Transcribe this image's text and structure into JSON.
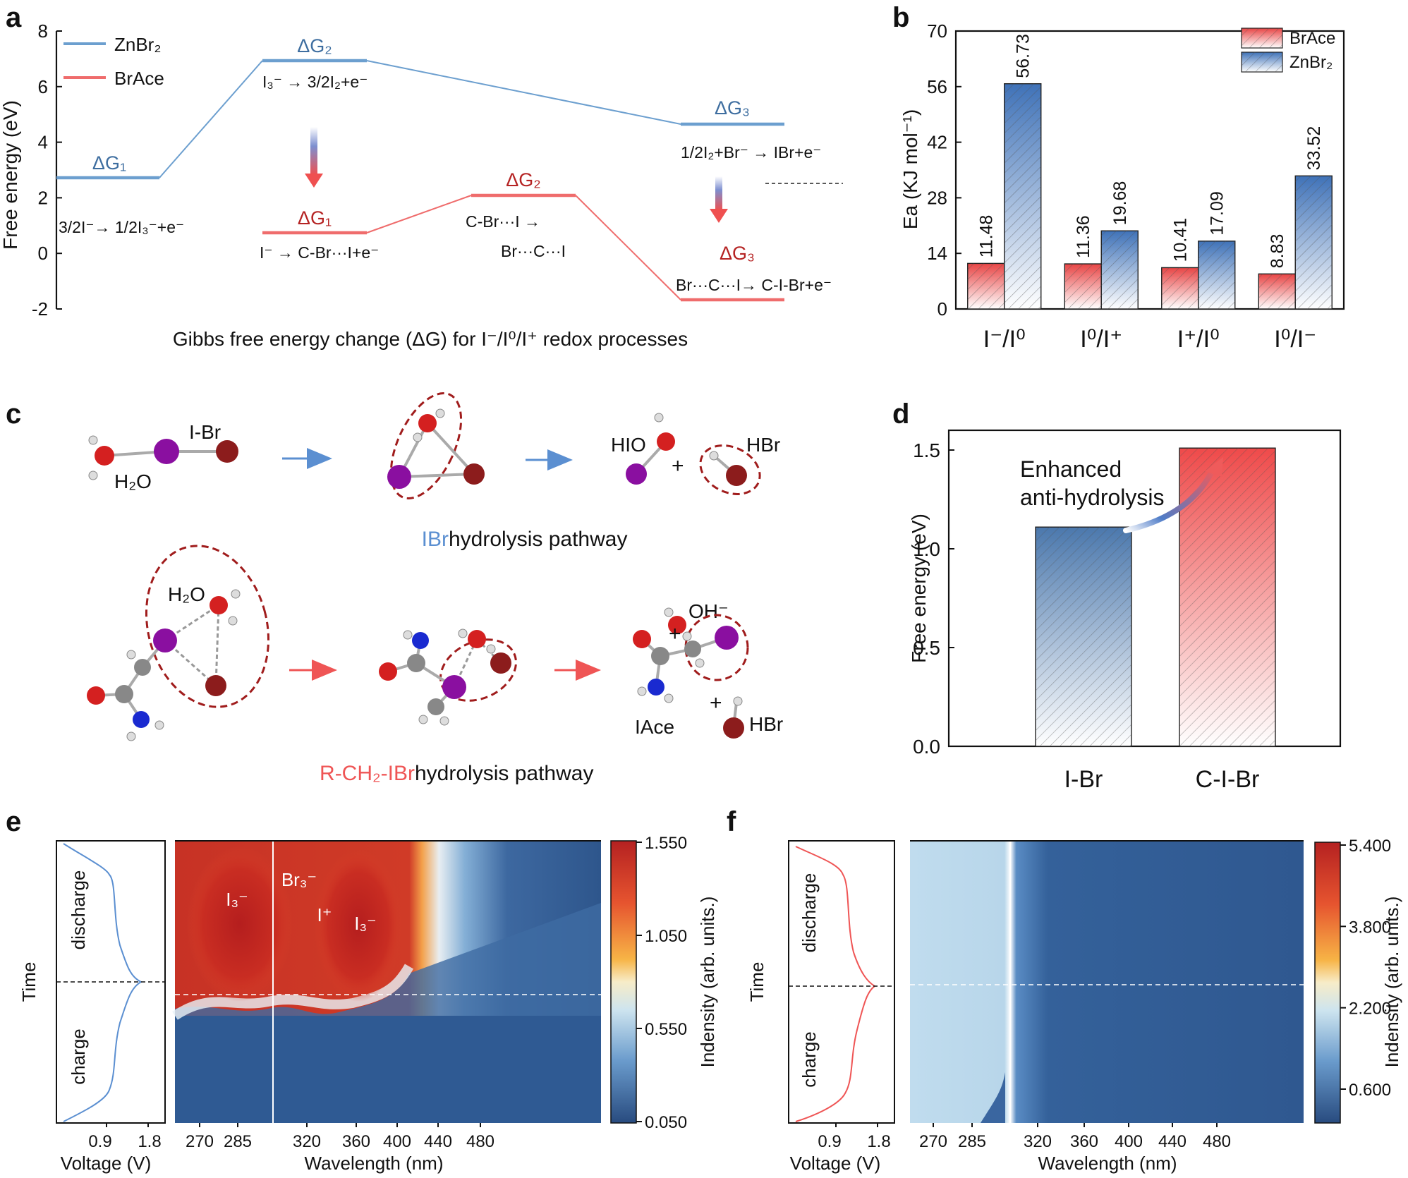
{
  "panels": {
    "a": "a",
    "b": "b",
    "c": "c",
    "d": "d",
    "e": "e",
    "f": "f"
  },
  "colors": {
    "blue": "#6c9fcf",
    "red": "#ef6c6c",
    "dark_blue": "#3f68a0",
    "dark_red": "#a01c1c"
  },
  "chart_a": {
    "type": "line",
    "ylabel": "Free energy (eV)",
    "xlabel": "Gibbs free energy change (ΔG) for I⁻/I⁰/I⁺ redox processes",
    "yticks": [
      "8",
      "6",
      "4",
      "2",
      "0",
      "-2"
    ],
    "ylim": [
      -2,
      8
    ],
    "legend": [
      "ZnBr₂",
      "BrAce"
    ],
    "zn_levels": [
      {
        "label": "ΔG₁",
        "value": 1.8,
        "reaction": "3/2I⁻→ 1/2I₃⁻+e⁻"
      },
      {
        "label": "ΔG₂",
        "value": 7.0,
        "reaction": "I₃⁻ → 3/2I₂+e⁻"
      },
      {
        "label": "ΔG₃",
        "value": 4.6,
        "reaction": "1/2I₂+Br⁻ → IBr+e⁻"
      }
    ],
    "brace_levels": [
      {
        "label": "ΔG₁",
        "value": 0.7,
        "reaction": "I⁻ → C-Br···I+e⁻"
      },
      {
        "label": "ΔG₂",
        "value": 2.1,
        "reaction": "C-Br···I →",
        "reaction2": "Br···C···I"
      },
      {
        "label": "ΔG₃",
        "value": -1.7,
        "reaction": "Br···C···I→ C-I-Br+e⁻"
      }
    ]
  },
  "chart_data": [
    {
      "type": "bar",
      "ylabel": "Ea (KJ mol⁻¹)",
      "ylim": [
        0,
        70
      ],
      "yticks": [
        "0",
        "14",
        "28",
        "42",
        "56",
        "70"
      ],
      "categories": [
        "I⁻/I⁰",
        "I⁰/I⁺",
        "I⁺/I⁰",
        "I⁰/I⁻"
      ],
      "legend_placement": "top-right",
      "series": [
        {
          "name": "BrAce",
          "values": [
            11.48,
            11.36,
            10.41,
            8.83
          ],
          "labels": [
            "11.48",
            "11.36",
            "10.41",
            "8.83"
          ]
        },
        {
          "name": "ZnBr₂",
          "values": [
            56.73,
            19.68,
            17.09,
            33.52
          ],
          "labels": [
            "56.73",
            "19.68",
            "17.09",
            "33.52"
          ]
        }
      ]
    },
    {
      "type": "bar",
      "ylabel": "Free energy (eV)",
      "ylim": [
        0,
        1.6
      ],
      "yticks": [
        "0.0",
        "0.5",
        "1.0",
        "1.5"
      ],
      "categories": [
        "I-Br",
        "C-I-Br"
      ],
      "values": [
        1.11,
        1.51
      ],
      "annotation": [
        "Enhanced",
        "anti-hydrolysis"
      ]
    }
  ],
  "panel_c": {
    "top_caption_colored": "IBr",
    "top_caption_rest": " hydrolysis pathway",
    "bottom_caption_colored": "R-CH₂-IBr",
    "bottom_caption_rest": " hydrolysis pathway",
    "labels": {
      "ibr": "I-Br",
      "h2o": "H₂O",
      "hio": "HIO",
      "hbr": "HBr",
      "plus": "+",
      "h2o_b": "H₂O",
      "oh": "OH⁻",
      "iace": "IAce",
      "hbr_b": "HBr"
    }
  },
  "panel_e": {
    "time_label": "Time",
    "discharge": "discharge",
    "charge": "charge",
    "voltage_label": "Voltage (V)",
    "voltage_ticks": [
      "0.9",
      "1.8"
    ],
    "wavelength_label": "Wavelength (nm)",
    "wl_ticks": [
      "270",
      "285",
      "320",
      "360",
      "400",
      "440",
      "480"
    ],
    "colorbar_ticks": [
      "1.550",
      "1.050",
      "0.550",
      "0.050"
    ],
    "colorbar_label": "Indensity (arb. units.)",
    "peaks": [
      "I₃⁻",
      "Br₃⁻",
      "I⁺",
      "I₃⁻"
    ]
  },
  "panel_f": {
    "time_label": "Time",
    "discharge": "discharge",
    "charge": "charge",
    "voltage_label": "Voltage (V)",
    "voltage_ticks": [
      "0.9",
      "1.8"
    ],
    "wavelength_label": "Wavelength (nm)",
    "wl_ticks": [
      "270",
      "285",
      "320",
      "360",
      "400",
      "440",
      "480"
    ],
    "colorbar_ticks": [
      "5.400",
      "3.800",
      "2.200",
      "0.600"
    ],
    "colorbar_label": "Indensity (arb. units.)"
  }
}
